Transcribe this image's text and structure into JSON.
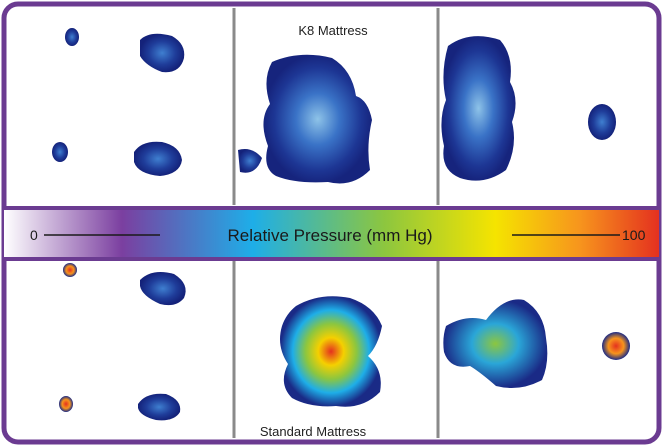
{
  "top_panel": {
    "label": "K8 Mattress"
  },
  "bottom_panel": {
    "label": "Standard Mattress"
  },
  "scale_bar": {
    "min_label": "0",
    "max_label": "100",
    "title": "Relative Pressure (mm Hg)"
  },
  "colors": {
    "frame": "#6b3b91",
    "divider": "#8a8a8a",
    "gradient": [
      "#ffffff",
      "#7b3fa0",
      "#1eaee8",
      "#8cc63f",
      "#f5e400",
      "#f7941d",
      "#e4311f"
    ]
  }
}
